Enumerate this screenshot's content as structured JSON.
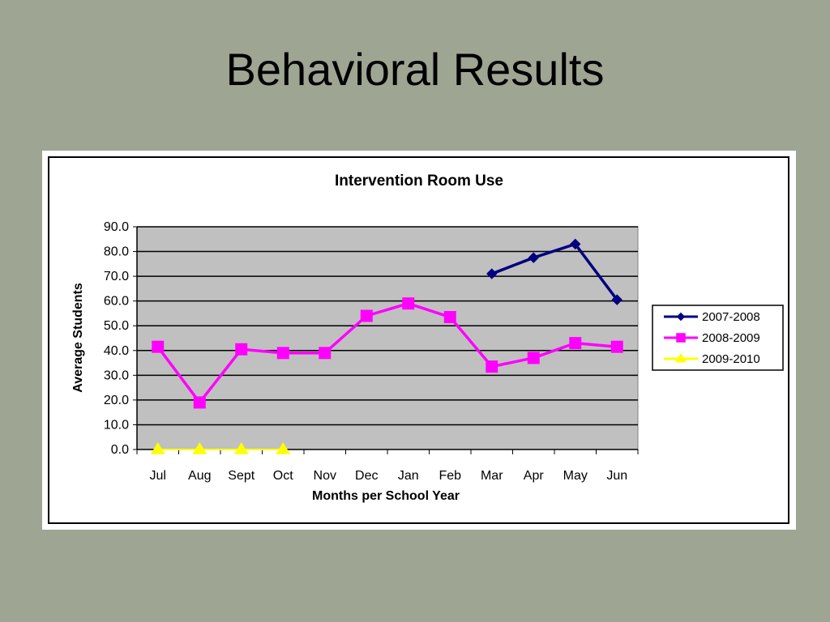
{
  "slide": {
    "title": "Behavioral Results"
  },
  "chart_data": {
    "type": "line",
    "title": "Intervention Room Use",
    "xlabel": "Months per School Year",
    "ylabel": "Average Students",
    "categories": [
      "Jul",
      "Aug",
      "Sept",
      "Oct",
      "Nov",
      "Dec",
      "Jan",
      "Feb",
      "Mar",
      "Apr",
      "May",
      "Jun"
    ],
    "ylim": [
      0,
      90
    ],
    "ytick_labels": [
      "0.0",
      "10.0",
      "20.0",
      "30.0",
      "40.0",
      "50.0",
      "60.0",
      "70.0",
      "80.0",
      "90.0"
    ],
    "grid": "horizontal",
    "legend_position": "right",
    "plot_background": "#c0c0c0",
    "series": [
      {
        "name": "2007-2008",
        "color": "#000080",
        "marker": "diamond",
        "values": [
          null,
          null,
          null,
          null,
          null,
          null,
          null,
          null,
          71,
          77.5,
          83,
          60.5
        ]
      },
      {
        "name": "2008-2009",
        "color": "#ff00ff",
        "marker": "square",
        "values": [
          41.5,
          19,
          40.5,
          39,
          39,
          54,
          59,
          53.5,
          33.5,
          37,
          43,
          41.5
        ]
      },
      {
        "name": "2009-2010",
        "color": "#ffff00",
        "marker": "triangle",
        "values": [
          0,
          0,
          0,
          0,
          null,
          null,
          null,
          null,
          null,
          null,
          null,
          null
        ]
      }
    ]
  }
}
